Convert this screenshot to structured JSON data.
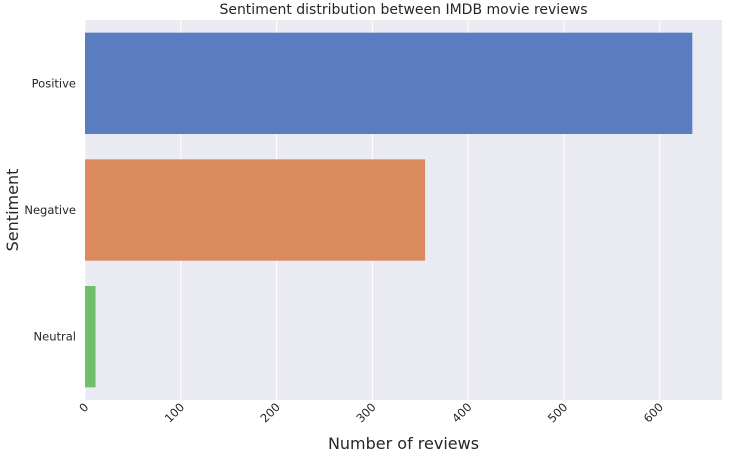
{
  "chart_data": {
    "type": "bar",
    "orientation": "horizontal",
    "title": "Sentiment distribution between IMDB movie reviews",
    "xlabel": "Number of reviews",
    "ylabel": "Sentiment",
    "categories": [
      "Positive",
      "Negative",
      "Neutral"
    ],
    "values": [
      634,
      355,
      11
    ],
    "colors": [
      "#5a7dc2",
      "#db8a5f",
      "#6fbf6a"
    ],
    "xlim": [
      0,
      665
    ],
    "xticks": [
      0,
      100,
      200,
      300,
      400,
      500,
      600
    ],
    "xtick_labels": [
      "0",
      "100",
      "200",
      "300",
      "400",
      "500",
      "600"
    ],
    "grid": true,
    "background": "#eaeaf2"
  }
}
